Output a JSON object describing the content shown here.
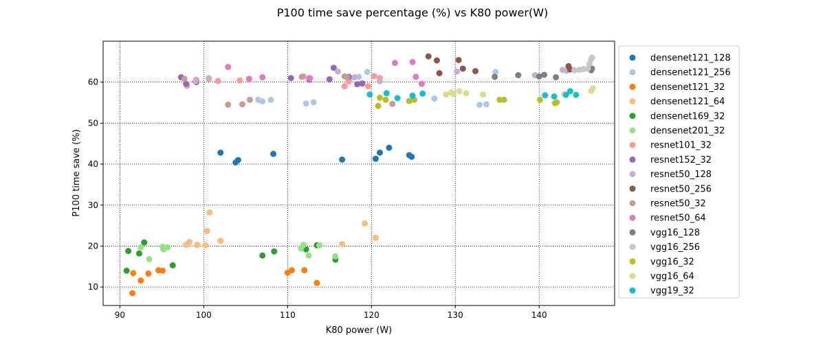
{
  "chart_data": {
    "type": "scatter",
    "title": "P100 time save percentage (%) vs K80 power(W)",
    "xlabel": "K80 power (W)",
    "ylabel": "P100 time save (%)",
    "xlim": [
      88,
      149
    ],
    "ylim": [
      5.5,
      70
    ],
    "xticks": [
      90,
      100,
      110,
      120,
      130,
      140
    ],
    "yticks": [
      10,
      20,
      30,
      40,
      50,
      60
    ],
    "grid": true,
    "grid_style": "dotted",
    "legend_position": "right outside",
    "series": [
      {
        "name": "densenet121_128",
        "color": "#1f77b4",
        "points": [
          [
            102,
            42.8
          ],
          [
            103.8,
            40.4
          ],
          [
            104.1,
            41
          ],
          [
            108.3,
            42.5
          ],
          [
            116.5,
            41.1
          ],
          [
            120.5,
            41.3
          ],
          [
            121,
            42.8
          ],
          [
            122.1,
            44
          ],
          [
            124.5,
            42.2
          ],
          [
            124.8,
            41.8
          ]
        ]
      },
      {
        "name": "densenet121_256",
        "color": "#aec7e8",
        "points": [
          [
            106.5,
            55.7
          ],
          [
            107,
            55.3
          ],
          [
            108,
            55.7
          ],
          [
            112.2,
            54.8
          ],
          [
            113.1,
            55.1
          ],
          [
            117.5,
            61
          ],
          [
            118.5,
            61.3
          ],
          [
            119.5,
            62.5
          ],
          [
            127.5,
            56
          ],
          [
            132.9,
            54.5
          ],
          [
            133.7,
            54.6
          ],
          [
            134.8,
            62.5
          ]
        ]
      },
      {
        "name": "densenet121_32",
        "color": "#ff7f0e",
        "points": [
          [
            91.5,
            8.5
          ],
          [
            91.6,
            13.4
          ],
          [
            92.5,
            11.6
          ],
          [
            93.4,
            13.3
          ],
          [
            94.6,
            14.1
          ],
          [
            95.1,
            14
          ],
          [
            110,
            13.5
          ],
          [
            110.5,
            14.1
          ],
          [
            112,
            14.1
          ],
          [
            113.5,
            11
          ]
        ]
      },
      {
        "name": "densenet121_64",
        "color": "#ffbb78",
        "points": [
          [
            97.9,
            20.3
          ],
          [
            98.3,
            21
          ],
          [
            99.2,
            20.3
          ],
          [
            100.2,
            20.2
          ],
          [
            100.4,
            23.7
          ],
          [
            100.7,
            28.2
          ],
          [
            102,
            21.3
          ],
          [
            116.5,
            20.5
          ],
          [
            119.2,
            25.5
          ],
          [
            120.5,
            22
          ]
        ]
      },
      {
        "name": "densenet169_32",
        "color": "#2ca02c",
        "points": [
          [
            90.8,
            14
          ],
          [
            91,
            18.8
          ],
          [
            92.3,
            18.2
          ],
          [
            92.9,
            20.9
          ],
          [
            96.3,
            15.3
          ],
          [
            107,
            17.7
          ],
          [
            108.4,
            18.7
          ],
          [
            112.2,
            19.2
          ],
          [
            113.5,
            20.2
          ],
          [
            115.7,
            16.7
          ]
        ]
      },
      {
        "name": "densenet201_32",
        "color": "#98df8a",
        "points": [
          [
            92.5,
            19.7
          ],
          [
            93.5,
            16.8
          ],
          [
            95.1,
            19.8
          ],
          [
            95.2,
            19.2
          ],
          [
            95.7,
            19.7
          ],
          [
            111.6,
            19.4
          ],
          [
            111.9,
            20.3
          ],
          [
            112.5,
            17.7
          ],
          [
            113.8,
            20.2
          ],
          [
            115.7,
            17.5
          ]
        ]
      },
      {
        "name": "resnet101_32",
        "color": "#ff9896",
        "points": [
          [
            98,
            59.1
          ],
          [
            99.1,
            60.6
          ],
          [
            100.6,
            60.8
          ],
          [
            101.7,
            60.3
          ],
          [
            104.3,
            60.4
          ],
          [
            111.9,
            61.4
          ],
          [
            116.8,
            59
          ],
          [
            117.3,
            60.2
          ],
          [
            118.9,
            59.6
          ],
          [
            119.6,
            59
          ],
          [
            120.3,
            61.5
          ],
          [
            121,
            61
          ]
        ]
      },
      {
        "name": "resnet152_32",
        "color": "#9467bd",
        "points": [
          [
            97.3,
            61.2
          ],
          [
            97.9,
            59.6
          ],
          [
            99.1,
            60
          ],
          [
            110.4,
            61
          ],
          [
            112.6,
            60.6
          ],
          [
            115,
            60.7
          ],
          [
            115.5,
            63.5
          ],
          [
            117.3,
            61.3
          ],
          [
            118.3,
            59.5
          ],
          [
            118.9,
            59.7
          ]
        ]
      },
      {
        "name": "resnet50_128",
        "color": "#c5b0d5",
        "points": [
          [
            99,
            60.2
          ],
          [
            100.6,
            61
          ],
          [
            112.7,
            60.9
          ],
          [
            116,
            62.6
          ],
          [
            118,
            61.2
          ],
          [
            121,
            60.2
          ],
          [
            130.2,
            62.6
          ],
          [
            139.5,
            61.7
          ],
          [
            142.8,
            63
          ],
          [
            143.3,
            62.8
          ]
        ]
      },
      {
        "name": "resnet50_256",
        "color": "#8c564b",
        "points": [
          [
            126.8,
            66.3
          ],
          [
            127.8,
            65.3
          ],
          [
            128.1,
            62.2
          ],
          [
            130.4,
            65.4
          ],
          [
            130.9,
            63.3
          ],
          [
            132.4,
            62.7
          ],
          [
            143.5,
            63.9
          ],
          [
            143.7,
            63.1
          ]
        ]
      },
      {
        "name": "resnet50_32",
        "color": "#c49c94",
        "points": [
          [
            97.7,
            60.8
          ],
          [
            102.9,
            54.5
          ],
          [
            104.6,
            54.6
          ],
          [
            105.5,
            55.7
          ],
          [
            111.7,
            61.3
          ],
          [
            116.8,
            61.4
          ],
          [
            117.1,
            61.2
          ],
          [
            122.5,
            54.7
          ]
        ]
      },
      {
        "name": "resnet50_64",
        "color": "#e377c2",
        "points": [
          [
            102.9,
            63.7
          ],
          [
            105.4,
            60.8
          ],
          [
            107,
            61.2
          ],
          [
            112.6,
            61
          ],
          [
            122.8,
            64.7
          ],
          [
            124.9,
            64.9
          ],
          [
            125.3,
            61.3
          ],
          [
            126,
            59.6
          ]
        ]
      },
      {
        "name": "vgg16_128",
        "color": "#7f7f7f",
        "points": [
          [
            134.7,
            61.3
          ],
          [
            137.5,
            61.7
          ],
          [
            140,
            61.4
          ],
          [
            140.6,
            61.8
          ],
          [
            142,
            61.2
          ],
          [
            146.2,
            62.9
          ],
          [
            146.3,
            63.3
          ]
        ]
      },
      {
        "name": "vgg16_256",
        "color": "#c7c7c7",
        "points": [
          [
            144.2,
            62.9
          ],
          [
            144.8,
            63
          ],
          [
            145.3,
            63.2
          ],
          [
            145.8,
            63.3
          ],
          [
            146,
            64.5
          ],
          [
            146.2,
            65.6
          ],
          [
            146.3,
            66
          ]
        ]
      },
      {
        "name": "vgg16_32",
        "color": "#bcbd22",
        "points": [
          [
            120.8,
            54.2
          ],
          [
            121,
            56.2
          ],
          [
            121.7,
            55.7
          ],
          [
            124.5,
            55.4
          ],
          [
            125.1,
            55.7
          ],
          [
            135.3,
            55.7
          ],
          [
            135.8,
            55.7
          ],
          [
            140.1,
            55.7
          ],
          [
            141.9,
            54.9
          ],
          [
            142.1,
            55.1
          ]
        ]
      },
      {
        "name": "vgg16_64",
        "color": "#dbdb8d",
        "points": [
          [
            128.9,
            57
          ],
          [
            129.5,
            57.5
          ],
          [
            129.8,
            57.1
          ],
          [
            130.5,
            57.8
          ],
          [
            131.3,
            57.3
          ],
          [
            133.3,
            57
          ],
          [
            143,
            57.1
          ],
          [
            146.2,
            57.9
          ],
          [
            146.4,
            58.5
          ]
        ]
      },
      {
        "name": "vgg19_32",
        "color": "#17becf",
        "points": [
          [
            119.8,
            57
          ],
          [
            121.8,
            57.3
          ],
          [
            123.1,
            56.1
          ],
          [
            124.9,
            56.7
          ],
          [
            126.1,
            57.2
          ],
          [
            140.7,
            56.8
          ],
          [
            141.8,
            56.5
          ],
          [
            143.2,
            56.9
          ],
          [
            143.7,
            57.8
          ],
          [
            144.4,
            56.9
          ]
        ]
      }
    ]
  }
}
